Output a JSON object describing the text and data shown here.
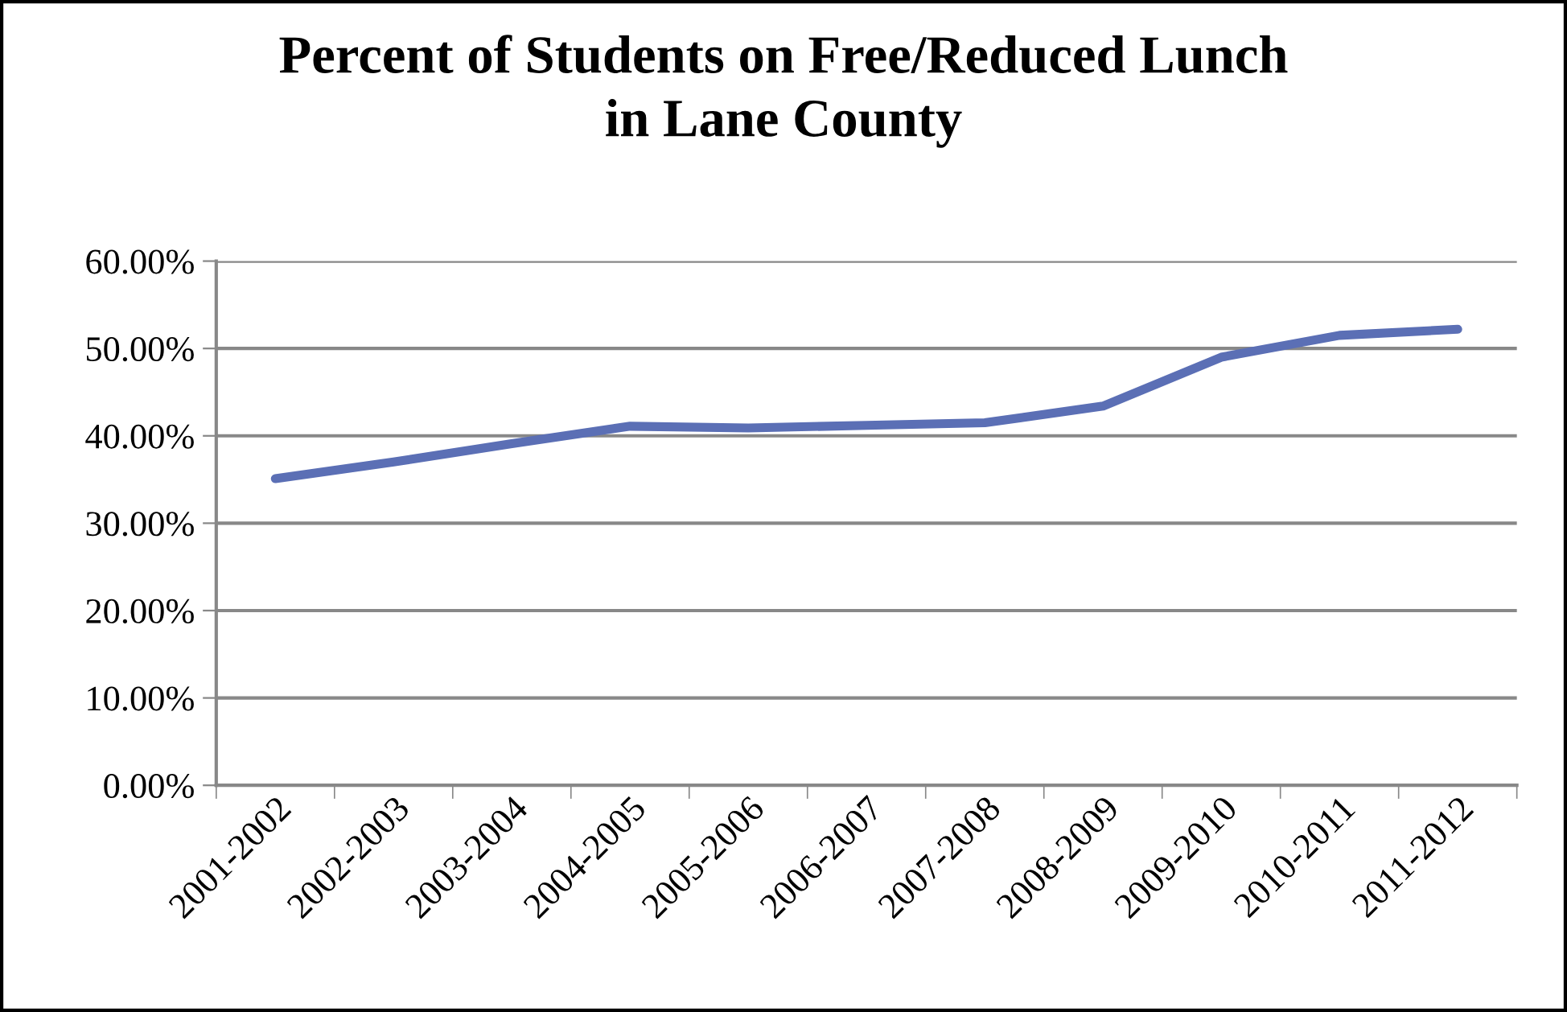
{
  "chart_data": {
    "type": "line",
    "title": "Percent of Students on Free/Reduced Lunch\nin Lane County",
    "categories": [
      "2001-2002",
      "2002-2003",
      "2003-2004",
      "2004-2005",
      "2005-2006",
      "2006-2007",
      "2007-2008",
      "2008-2009",
      "2009-2010",
      "2010-2011",
      "2011-2012"
    ],
    "series": [
      {
        "color": "#5b6fb5",
        "values": [
          35.1,
          37.0,
          39.1,
          41.1,
          40.9,
          41.2,
          41.5,
          43.4,
          49.0,
          51.5,
          52.2
        ]
      }
    ],
    "ylim": [
      0,
      60
    ],
    "yticks": [
      {
        "value": 0,
        "label": "0.00%"
      },
      {
        "value": 10,
        "label": "10.00%"
      },
      {
        "value": 20,
        "label": "20.00%"
      },
      {
        "value": 30,
        "label": "30.00%"
      },
      {
        "value": 40,
        "label": "40.00%"
      },
      {
        "value": 50,
        "label": "50.00%"
      },
      {
        "value": 60,
        "label": "60.00%"
      }
    ],
    "grid": "y",
    "legend": false,
    "marker": "none",
    "line_style": "solid"
  }
}
